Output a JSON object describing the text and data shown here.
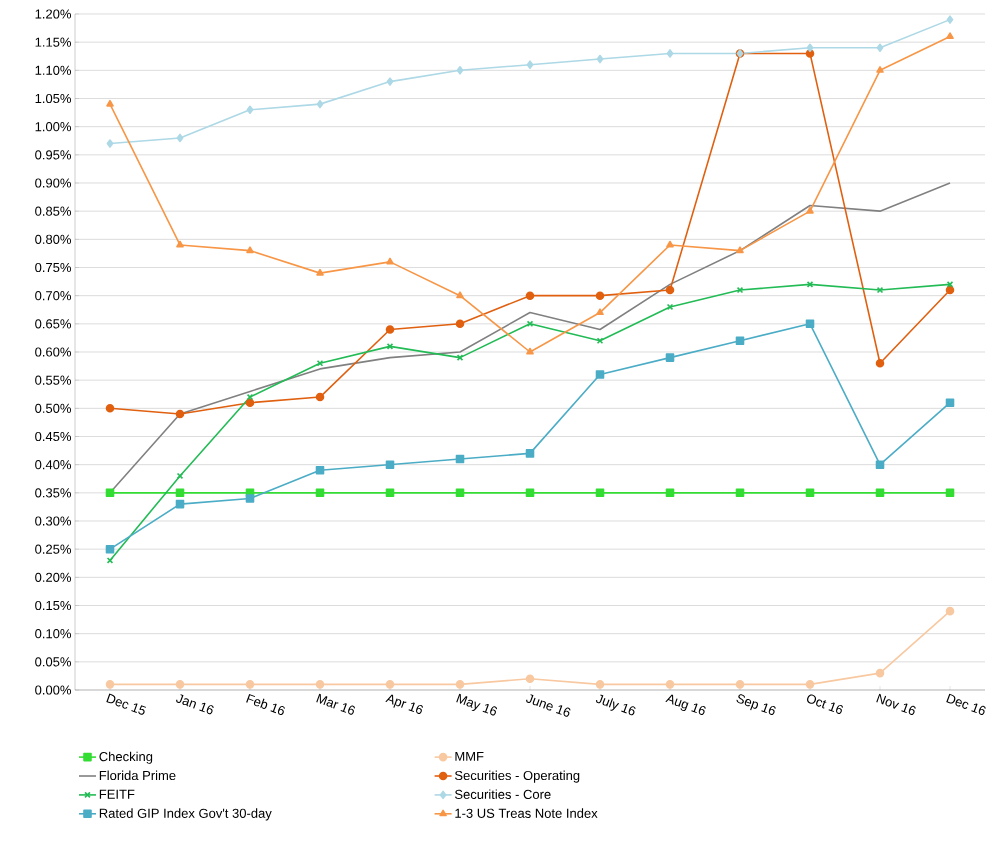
{
  "chart_data": {
    "type": "line",
    "categories": [
      "Dec 15",
      "Jan 16",
      "Feb 16",
      "Mar 16",
      "Apr 16",
      "May 16",
      "June 16",
      "July 16",
      "Aug 16",
      "Sep 16",
      "Oct 16",
      "Nov 16",
      "Dec 16"
    ],
    "series": [
      {
        "name": "Checking",
        "color": "#33dd33",
        "marker": "square",
        "values": [
          0.35,
          0.35,
          0.35,
          0.35,
          0.35,
          0.35,
          0.35,
          0.35,
          0.35,
          0.35,
          0.35,
          0.35,
          0.35
        ]
      },
      {
        "name": "MMF",
        "color": "#f8c8a0",
        "marker": "circle",
        "values": [
          0.01,
          0.01,
          0.01,
          0.01,
          0.01,
          0.01,
          0.02,
          0.01,
          0.01,
          0.01,
          0.01,
          0.03,
          0.14
        ]
      },
      {
        "name": "Florida Prime",
        "color": "#808080",
        "marker": "none",
        "values": [
          0.35,
          0.49,
          0.53,
          0.57,
          0.59,
          0.6,
          0.67,
          0.64,
          0.72,
          0.78,
          0.86,
          0.85,
          0.9
        ]
      },
      {
        "name": "Securities - Operating",
        "color": "#e06010",
        "marker": "circle",
        "values": [
          0.5,
          0.49,
          0.51,
          0.52,
          0.64,
          0.65,
          0.7,
          0.7,
          0.71,
          1.13,
          1.13,
          0.58,
          0.71
        ]
      },
      {
        "name": "FEITF",
        "color": "#22bb55",
        "marker": "cross",
        "values": [
          0.23,
          0.38,
          0.52,
          0.58,
          0.61,
          0.59,
          0.65,
          0.62,
          0.68,
          0.71,
          0.72,
          0.71,
          0.72
        ]
      },
      {
        "name": "Securities - Core",
        "color": "#add8e6",
        "marker": "diamond",
        "values": [
          0.97,
          0.98,
          1.03,
          1.04,
          1.08,
          1.1,
          1.11,
          1.12,
          1.13,
          1.13,
          1.14,
          1.14,
          1.19
        ]
      },
      {
        "name": "Rated GIP Index Gov't 30-day",
        "color": "#4bacc6",
        "marker": "square",
        "values": [
          0.25,
          0.33,
          0.34,
          0.39,
          0.4,
          0.41,
          0.42,
          0.56,
          0.59,
          0.62,
          0.65,
          0.4,
          0.51
        ]
      },
      {
        "name": "1-3 US Treas Note Index",
        "color": "#f79646",
        "marker": "triangle",
        "values": [
          1.04,
          0.79,
          0.78,
          0.74,
          0.76,
          0.7,
          0.6,
          0.67,
          0.79,
          0.78,
          0.85,
          1.1,
          1.16
        ]
      }
    ],
    "ylim": [
      0,
      1.2
    ],
    "yticks": [
      {
        "value": 0,
        "label": "0.00%"
      },
      {
        "value": 0.05,
        "label": "0.05%"
      },
      {
        "value": 0.1,
        "label": "0.10%"
      },
      {
        "value": 0.15,
        "label": "0.15%"
      },
      {
        "value": 0.2,
        "label": "0.20%"
      },
      {
        "value": 0.25,
        "label": "0.25%"
      },
      {
        "value": 0.3,
        "label": "0.30%"
      },
      {
        "value": 0.35,
        "label": "0.35%"
      },
      {
        "value": 0.4,
        "label": "0.40%"
      },
      {
        "value": 0.45,
        "label": "0.45%"
      },
      {
        "value": 0.5,
        "label": "0.50%"
      },
      {
        "value": 0.55,
        "label": "0.55%"
      },
      {
        "value": 0.6,
        "label": "0.60%"
      },
      {
        "value": 0.65,
        "label": "0.65%"
      },
      {
        "value": 0.7,
        "label": "0.70%"
      },
      {
        "value": 0.75,
        "label": "0.75%"
      },
      {
        "value": 0.8,
        "label": "0.80%"
      },
      {
        "value": 0.85,
        "label": "0.85%"
      },
      {
        "value": 0.9,
        "label": "0.90%"
      },
      {
        "value": 0.95,
        "label": "0.95%"
      },
      {
        "value": 1.0,
        "label": "1.00%"
      },
      {
        "value": 1.05,
        "label": "1.05%"
      },
      {
        "value": 1.1,
        "label": "1.10%"
      },
      {
        "value": 1.15,
        "label": "1.15%"
      },
      {
        "value": 1.2,
        "label": "1.20%"
      }
    ],
    "grid": "y",
    "legend": "bottom"
  }
}
